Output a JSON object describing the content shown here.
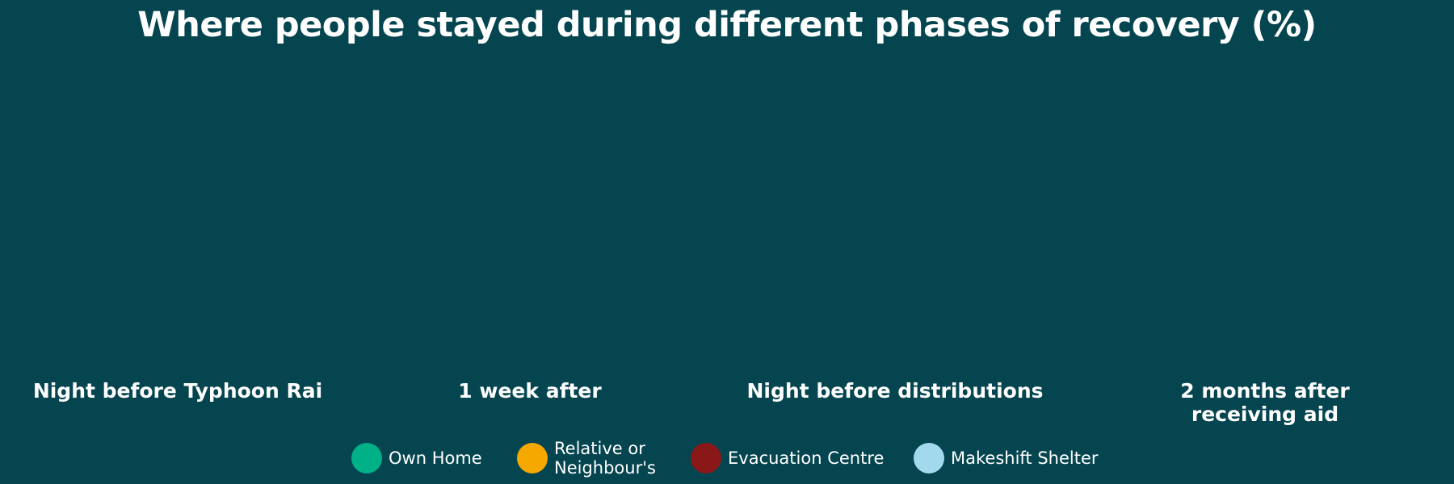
{
  "chart_data": {
    "type": "bar",
    "title": "Where people stayed during different phases of recovery (%)",
    "categories": [
      "Night before Typhoon Rai",
      "1 week after",
      "Night before distributions",
      "2 months after receiving aid"
    ],
    "legend_position": "bottom",
    "series": [
      {
        "name": "Own Home",
        "color": "#00b187"
      },
      {
        "name": "Relative or Neighbour's",
        "color": "#f5a800"
      },
      {
        "name": "Evacuation Centre",
        "color": "#8b1818"
      },
      {
        "name": "Makeshift Shelter",
        "color": "#a3d9ec"
      }
    ]
  }
}
